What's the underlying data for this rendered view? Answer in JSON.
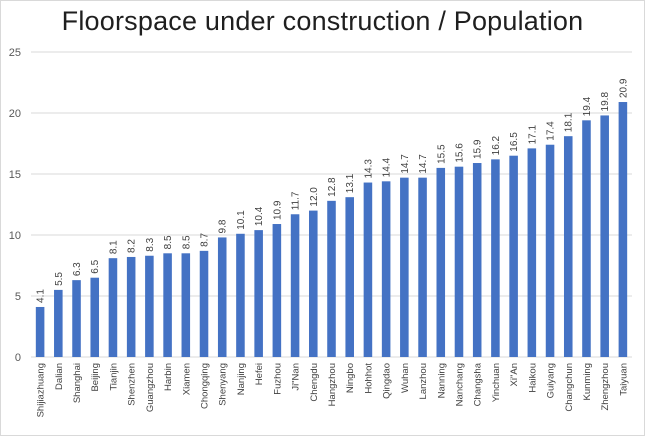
{
  "chart_data": {
    "type": "bar",
    "title": "Floorspace under construction / Population",
    "xlabel": "",
    "ylabel": "",
    "ylim": [
      0,
      25
    ],
    "yticks": [
      0,
      5,
      10,
      15,
      20,
      25
    ],
    "grid": true,
    "legend": "none",
    "bar_color": "#4472c4",
    "categories": [
      "Shijiazhuang",
      "Dalian",
      "Shanghai",
      "Beijing",
      "Tianjin",
      "Shenzhen",
      "Guangzhou",
      "Harbin",
      "Xiamen",
      "Chongqing",
      "Shenyang",
      "Nanjing",
      "Hefei",
      "Fuzhou",
      "Ji\"Nan",
      "Chengdu",
      "Hangzhou",
      "Ningbo",
      "Hohhot",
      "Qingdao",
      "Wuhan",
      "Lanzhou",
      "Nanning",
      "Nanchang",
      "Changsha",
      "Yinchuan",
      "Xi\"An",
      "Haikou",
      "Guiyang",
      "Changchun",
      "Kunming",
      "Zhengzhou",
      "Taiyuan"
    ],
    "values": [
      4.1,
      5.5,
      6.3,
      6.5,
      8.1,
      8.2,
      8.3,
      8.5,
      8.5,
      8.7,
      9.8,
      10.1,
      10.4,
      10.9,
      11.7,
      12.0,
      12.8,
      13.1,
      14.3,
      14.4,
      14.7,
      14.7,
      15.5,
      15.6,
      15.9,
      16.2,
      16.5,
      17.1,
      17.4,
      18.1,
      19.4,
      19.8,
      20.9
    ],
    "data_labels": [
      "4.1",
      "5.5",
      "6.3",
      "6.5",
      "8.1",
      "8.2",
      "8.3",
      "8.5",
      "8.5",
      "8.7",
      "9.8",
      "10.1",
      "10.4",
      "10.9",
      "11.7",
      "12.0",
      "12.8",
      "13.1",
      "14.3",
      "14.4",
      "14.7",
      "14.7",
      "15.5",
      "15.6",
      "15.9",
      "16.2",
      "16.5",
      "17.1",
      "17.4",
      "18.1",
      "19.4",
      "19.8",
      "20.9"
    ]
  }
}
